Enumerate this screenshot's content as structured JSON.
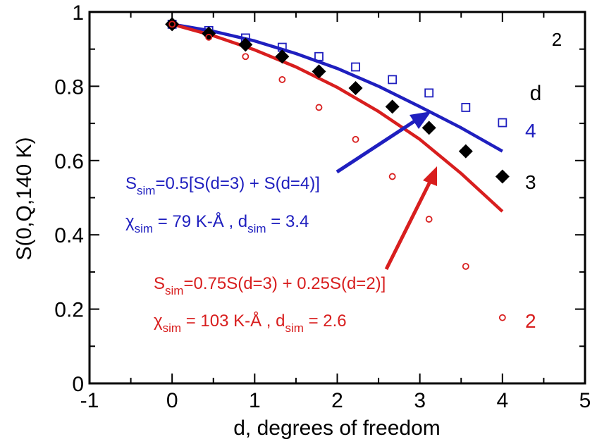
{
  "chart_data": {
    "type": "scatter",
    "panel_label": "2",
    "xlabel": "d, degrees of freedom",
    "ylabel": "S(0,Q,140 K)",
    "xlim": [
      -1,
      5
    ],
    "ylim": [
      0,
      1
    ],
    "xticks": [
      "-1",
      "0",
      "1",
      "2",
      "3",
      "4",
      "5"
    ],
    "yticks": [
      "0",
      "0.2",
      "0.4",
      "0.6",
      "0.8",
      "1"
    ],
    "x": [
      0,
      0.444,
      0.889,
      1.333,
      1.778,
      2.222,
      2.667,
      3.111,
      3.556,
      4.0
    ],
    "legend_title": "d",
    "colors": {
      "d4": "#1f1fbf",
      "d3": "#000000",
      "d2": "#d81e1e"
    },
    "series": [
      {
        "name": "4",
        "marker": "open-square",
        "values": [
          0.967,
          0.95,
          0.93,
          0.905,
          0.88,
          0.852,
          0.818,
          0.782,
          0.743,
          0.702
        ]
      },
      {
        "name": "3",
        "marker": "filled-diamond",
        "values": [
          0.967,
          0.942,
          0.912,
          0.88,
          0.84,
          0.795,
          0.745,
          0.688,
          0.625,
          0.557
        ]
      },
      {
        "name": "2",
        "marker": "open-circle",
        "values": [
          0.967,
          0.932,
          0.88,
          0.818,
          0.743,
          0.657,
          0.557,
          0.442,
          0.315,
          0.177
        ]
      }
    ],
    "fit_curves": [
      {
        "x": [
          0,
          0.5,
          1.0,
          1.5,
          2.0,
          2.5,
          3.0,
          3.5,
          4.0
        ],
        "values": [
          0.967,
          0.948,
          0.922,
          0.888,
          0.848,
          0.8,
          0.745,
          0.688,
          0.625
        ]
      },
      {
        "x": [
          0,
          0.5,
          1.0,
          1.5,
          2.0,
          2.5,
          3.0,
          3.5,
          4.0
        ],
        "values": [
          0.967,
          0.936,
          0.898,
          0.852,
          0.797,
          0.732,
          0.657,
          0.565,
          0.463
        ]
      }
    ],
    "annotations": [
      {
        "sym": "S",
        "sub": "sim",
        "rest": "=0.5[S(d=3) + S(d=4)]"
      },
      {
        "sym": "χ",
        "sub": "sim",
        "rest": " = 79 K-Å , d",
        "sub2": "sim",
        "rest2": " = 3.4"
      },
      {
        "sym": "S",
        "sub": "sim",
        "rest": "=0.75S(d=3) + 0.25S(d=2)]"
      },
      {
        "sym": "χ",
        "sub": "sim",
        "rest": " = 103 K-Å , d",
        "sub2": "sim",
        "rest2": " = 2.6"
      }
    ]
  }
}
